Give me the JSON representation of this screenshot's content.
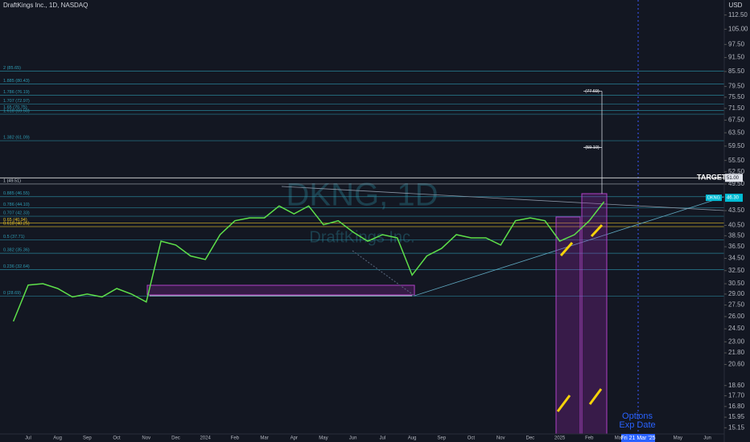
{
  "chart_data": {
    "type": "line",
    "title": "DraftKings Inc., 1D, NASDAQ",
    "currency": "USD",
    "watermark": "DKNG, 1D",
    "watermark_sub": "DraftKings Inc.",
    "log_scale": true,
    "grid": false,
    "color": "#5ee04a",
    "categories": [
      null,
      "Jul",
      null,
      "Aug",
      null,
      "Sep",
      null,
      "Oct",
      null,
      "Nov",
      null,
      "Dec",
      null,
      "2024",
      null,
      "Feb",
      null,
      "Mar",
      null,
      "Apr",
      null,
      "May",
      null,
      "Jun",
      null,
      "Jul",
      null,
      "Aug",
      null,
      "Sep",
      null,
      "Oct",
      null,
      "Nov",
      null,
      "Dec",
      null,
      "2025",
      null,
      "Feb",
      null,
      "Mar",
      null,
      null,
      null,
      "May",
      null,
      "Jun"
    ],
    "values": [
      25.4,
      30.3,
      30.5,
      29.8,
      28.6,
      29.0,
      28.6,
      29.8,
      29.0,
      27.9,
      37.5,
      36.8,
      34.9,
      34.3,
      38.7,
      41.4,
      42.0,
      42.0,
      44.5,
      42.8,
      44.5,
      40.6,
      41.4,
      39.2,
      37.5,
      38.7,
      38.1,
      31.8,
      34.9,
      36.2,
      38.7,
      38.1,
      38.1,
      36.8,
      41.4,
      42.0,
      41.4,
      37.5,
      38.7,
      41.4,
      45.4,
      null,
      null,
      null,
      null,
      null,
      null,
      null
    ],
    "ylim": [
      14.7,
      121
    ],
    "yticks": [
      {
        "value": 112.5,
        "label": "112.50"
      },
      {
        "value": 105,
        "label": "105.00"
      },
      {
        "value": 97.5,
        "label": "97.50"
      },
      {
        "value": 91.5,
        "label": "91.50"
      },
      {
        "value": 85.5,
        "label": "85.50"
      },
      {
        "value": 79.5,
        "label": "79.50"
      },
      {
        "value": 75.5,
        "label": "75.50"
      },
      {
        "value": 71.5,
        "label": "71.50"
      },
      {
        "value": 67.5,
        "label": "67.50"
      },
      {
        "value": 63.5,
        "label": "63.50"
      },
      {
        "value": 59.5,
        "label": "59.50"
      },
      {
        "value": 55.5,
        "label": "55.50"
      },
      {
        "value": 52.5,
        "label": "52.50"
      },
      {
        "value": 49.5,
        "label": "49.50"
      },
      {
        "value": 43.5,
        "label": "43.50"
      },
      {
        "value": 40.5,
        "label": "40.50"
      },
      {
        "value": 38.5,
        "label": "38.50"
      },
      {
        "value": 36.5,
        "label": "36.50"
      },
      {
        "value": 34.5,
        "label": "34.50"
      },
      {
        "value": 32.5,
        "label": "32.50"
      },
      {
        "value": 30.5,
        "label": "30.50"
      },
      {
        "value": 29,
        "label": "29.00"
      },
      {
        "value": 27.5,
        "label": "27.50"
      },
      {
        "value": 26,
        "label": "26.00"
      },
      {
        "value": 24.5,
        "label": "24.50"
      },
      {
        "value": 23,
        "label": "23.00"
      },
      {
        "value": 21.8,
        "label": "21.80"
      },
      {
        "value": 20.6,
        "label": "20.60"
      },
      {
        "value": 18.6,
        "label": "18.60"
      },
      {
        "value": 17.7,
        "label": "17.70"
      },
      {
        "value": 16.8,
        "label": "16.80"
      },
      {
        "value": 15.95,
        "label": "15.95"
      },
      {
        "value": 15.15,
        "label": "15.15"
      }
    ],
    "fib_levels": [
      {
        "label": "2 (85.65)",
        "value": 85.65,
        "color": "#2e9bb3"
      },
      {
        "label": "1.885 (80.43)",
        "value": 80.43,
        "color": "#2e9bb3"
      },
      {
        "label": "1.786 (76.19)",
        "value": 76.19,
        "color": "#2e9bb3"
      },
      {
        "label": "1.707 (72.97)",
        "value": 72.97,
        "color": "#2e9bb3"
      },
      {
        "label": "1.65 (70.75)",
        "value": 70.75,
        "color": "#2e9bb3"
      },
      {
        "label": "1.618 (69.50)",
        "value": 69.5,
        "color": "#2e9bb3"
      },
      {
        "label": "1.382 (61.09)",
        "value": 61.09,
        "color": "#2e9bb3"
      },
      {
        "label": "1 (49.51)",
        "value": 49.51,
        "color": "#c8d0d8"
      },
      {
        "label": "0.885 (46.55)",
        "value": 46.55,
        "color": "#2e9bb3"
      },
      {
        "label": "0.786 (44.10)",
        "value": 44.1,
        "color": "#2e9bb3"
      },
      {
        "label": "0.707 (42.33)",
        "value": 42.33,
        "color": "#2e9bb3"
      },
      {
        "label": "0.65 (40.94)",
        "value": 40.94,
        "color": "#e6c229"
      },
      {
        "label": "0.618 (40.25)",
        "value": 40.25,
        "color": "#e6c229"
      },
      {
        "label": "0.5 (37.71)",
        "value": 37.71,
        "color": "#2e9bb3"
      },
      {
        "label": "0.382 (35.36)",
        "value": 35.36,
        "color": "#2e9bb3"
      },
      {
        "label": "0.236 (32.64)",
        "value": 32.64,
        "color": "#2e9bb3"
      },
      {
        "label": "0 (28.69)",
        "value": 28.69,
        "color": "#2e9bb3"
      }
    ],
    "projections": [
      {
        "value": 77.69,
        "label": "(77.69)"
      },
      {
        "value": 59.1,
        "label": "(59.10)"
      }
    ],
    "target": {
      "label": "TARGET 1",
      "value": 51.0,
      "value_label": "51.00"
    },
    "last_price": {
      "symbol": "DKNG",
      "value": 46.3,
      "label": "46.30"
    },
    "cursor_date": "Fri 21 Mar '25",
    "note": [
      "Options",
      "Exp Date"
    ]
  }
}
